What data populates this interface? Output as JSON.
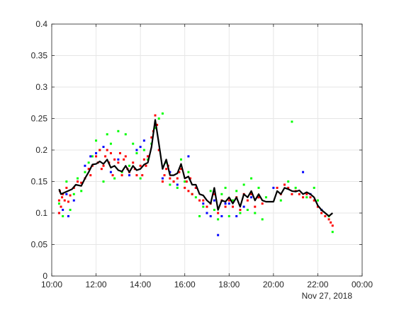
{
  "chart_data": {
    "type": "scatter",
    "title": "",
    "xlabel": "",
    "ylabel": "",
    "date_label": "Nov 27, 2018",
    "xlim_hours": [
      10,
      24
    ],
    "ylim": [
      0,
      0.4
    ],
    "grid": true,
    "legend": "none",
    "x_tick_labels": [
      "10:00",
      "12:00",
      "14:00",
      "16:00",
      "18:00",
      "20:00",
      "22:00",
      "00:00"
    ],
    "y_tick_labels": [
      "0",
      "0.05",
      "0.1",
      "0.15",
      "0.2",
      "0.25",
      "0.3",
      "0.35",
      "0.4"
    ],
    "colors": {
      "red": "#ff0000",
      "green": "#00ff00",
      "blue": "#0000ff",
      "line": "#000000",
      "grid": "#e6e6e6",
      "axis": "#262626"
    },
    "line_series": {
      "name": "",
      "points": [
        [
          "10:20",
          0.138
        ],
        [
          "10:25",
          0.13
        ],
        [
          "10:40",
          0.134
        ],
        [
          "10:55",
          0.138
        ],
        [
          "11:05",
          0.145
        ],
        [
          "11:20",
          0.143
        ],
        [
          "11:30",
          0.155
        ],
        [
          "11:40",
          0.165
        ],
        [
          "11:50",
          0.177
        ],
        [
          "12:00",
          0.178
        ],
        [
          "12:10",
          0.182
        ],
        [
          "12:20",
          0.178
        ],
        [
          "12:30",
          0.185
        ],
        [
          "12:40",
          0.172
        ],
        [
          "12:50",
          0.175
        ],
        [
          "13:00",
          0.168
        ],
        [
          "13:10",
          0.166
        ],
        [
          "13:20",
          0.175
        ],
        [
          "13:30",
          0.165
        ],
        [
          "13:40",
          0.175
        ],
        [
          "13:50",
          0.168
        ],
        [
          "14:00",
          0.17
        ],
        [
          "14:10",
          0.177
        ],
        [
          "14:20",
          0.18
        ],
        [
          "14:30",
          0.205
        ],
        [
          "14:40",
          0.248
        ],
        [
          "14:50",
          0.21
        ],
        [
          "15:00",
          0.17
        ],
        [
          "15:10",
          0.185
        ],
        [
          "15:20",
          0.16
        ],
        [
          "15:30",
          0.16
        ],
        [
          "15:40",
          0.163
        ],
        [
          "15:50",
          0.178
        ],
        [
          "16:00",
          0.155
        ],
        [
          "16:10",
          0.158
        ],
        [
          "16:20",
          0.145
        ],
        [
          "16:30",
          0.145
        ],
        [
          "16:40",
          0.13
        ],
        [
          "16:50",
          0.128
        ],
        [
          "17:00",
          0.12
        ],
        [
          "17:10",
          0.115
        ],
        [
          "17:20",
          0.14
        ],
        [
          "17:30",
          0.105
        ],
        [
          "17:40",
          0.12
        ],
        [
          "17:50",
          0.118
        ],
        [
          "18:00",
          0.125
        ],
        [
          "18:10",
          0.115
        ],
        [
          "18:20",
          0.125
        ],
        [
          "18:30",
          0.11
        ],
        [
          "18:40",
          0.13
        ],
        [
          "18:50",
          0.125
        ],
        [
          "19:00",
          0.135
        ],
        [
          "19:10",
          0.12
        ],
        [
          "19:20",
          0.13
        ],
        [
          "19:30",
          0.12
        ],
        [
          "19:40",
          0.118
        ],
        [
          "20:00",
          0.118
        ],
        [
          "20:10",
          0.135
        ],
        [
          "20:20",
          0.13
        ],
        [
          "20:30",
          0.14
        ],
        [
          "20:40",
          0.138
        ],
        [
          "20:50",
          0.135
        ],
        [
          "21:00",
          0.134
        ],
        [
          "21:10",
          0.136
        ],
        [
          "21:20",
          0.13
        ],
        [
          "21:30",
          0.133
        ],
        [
          "21:40",
          0.13
        ],
        [
          "21:50",
          0.125
        ],
        [
          "22:00",
          0.112
        ],
        [
          "22:10",
          0.105
        ],
        [
          "22:20",
          0.1
        ],
        [
          "22:30",
          0.095
        ],
        [
          "22:40",
          0.1
        ]
      ]
    },
    "scatter_series": [
      {
        "name": "",
        "color": "red",
        "points": [
          [
            "10:20",
            0.1
          ],
          [
            "10:20",
            0.12
          ],
          [
            "10:22",
            0.135
          ],
          [
            "10:25",
            0.11
          ],
          [
            "10:28",
            0.125
          ],
          [
            "10:30",
            0.13
          ],
          [
            "10:35",
            0.12
          ],
          [
            "10:40",
            0.14
          ],
          [
            "10:45",
            0.118
          ],
          [
            "10:50",
            0.128
          ],
          [
            "11:00",
            0.14
          ],
          [
            "11:10",
            0.15
          ],
          [
            "11:20",
            0.148
          ],
          [
            "11:30",
            0.155
          ],
          [
            "11:40",
            0.17
          ],
          [
            "11:45",
            0.16
          ],
          [
            "11:50",
            0.175
          ],
          [
            "12:00",
            0.19
          ],
          [
            "12:05",
            0.18
          ],
          [
            "12:10",
            0.2
          ],
          [
            "12:15",
            0.17
          ],
          [
            "12:20",
            0.175
          ],
          [
            "12:25",
            0.19
          ],
          [
            "12:30",
            0.2
          ],
          [
            "12:35",
            0.18
          ],
          [
            "12:40",
            0.195
          ],
          [
            "12:45",
            0.16
          ],
          [
            "12:50",
            0.185
          ],
          [
            "13:00",
            0.18
          ],
          [
            "13:05",
            0.195
          ],
          [
            "13:10",
            0.16
          ],
          [
            "13:15",
            0.185
          ],
          [
            "13:20",
            0.19
          ],
          [
            "13:25",
            0.17
          ],
          [
            "13:30",
            0.165
          ],
          [
            "13:40",
            0.18
          ],
          [
            "13:45",
            0.17
          ],
          [
            "13:50",
            0.16
          ],
          [
            "14:00",
            0.175
          ],
          [
            "14:05",
            0.16
          ],
          [
            "14:10",
            0.185
          ],
          [
            "14:15",
            0.175
          ],
          [
            "14:20",
            0.19
          ],
          [
            "14:30",
            0.22
          ],
          [
            "14:35",
            0.23
          ],
          [
            "14:40",
            0.255
          ],
          [
            "14:45",
            0.24
          ],
          [
            "14:50",
            0.2
          ],
          [
            "15:00",
            0.15
          ],
          [
            "15:05",
            0.16
          ],
          [
            "15:10",
            0.17
          ],
          [
            "15:15",
            0.175
          ],
          [
            "15:20",
            0.155
          ],
          [
            "15:30",
            0.15
          ],
          [
            "15:40",
            0.155
          ],
          [
            "15:45",
            0.165
          ],
          [
            "15:50",
            0.17
          ],
          [
            "16:00",
            0.14
          ],
          [
            "16:05",
            0.15
          ],
          [
            "16:10",
            0.135
          ],
          [
            "16:15",
            0.155
          ],
          [
            "16:20",
            0.13
          ],
          [
            "16:30",
            0.14
          ],
          [
            "16:40",
            0.12
          ],
          [
            "16:50",
            0.12
          ],
          [
            "17:00",
            0.11
          ],
          [
            "17:10",
            0.115
          ],
          [
            "17:20",
            0.13
          ],
          [
            "17:30",
            0.1
          ],
          [
            "17:40",
            0.12
          ],
          [
            "17:50",
            0.11
          ],
          [
            "18:00",
            0.12
          ],
          [
            "18:10",
            0.11
          ],
          [
            "18:20",
            0.125
          ],
          [
            "18:30",
            0.105
          ],
          [
            "18:40",
            0.13
          ],
          [
            "18:50",
            0.12
          ],
          [
            "19:00",
            0.13
          ],
          [
            "19:10",
            0.11
          ],
          [
            "19:20",
            0.125
          ],
          [
            "19:30",
            0.115
          ],
          [
            "20:10",
            0.14
          ],
          [
            "20:20",
            0.13
          ],
          [
            "20:30",
            0.145
          ],
          [
            "20:40",
            0.14
          ],
          [
            "20:50",
            0.13
          ],
          [
            "21:00",
            0.135
          ],
          [
            "21:10",
            0.13
          ],
          [
            "21:20",
            0.125
          ],
          [
            "21:30",
            0.13
          ],
          [
            "21:40",
            0.125
          ],
          [
            "21:50",
            0.12
          ],
          [
            "22:00",
            0.11
          ],
          [
            "22:10",
            0.1
          ],
          [
            "22:20",
            0.095
          ],
          [
            "22:30",
            0.09
          ],
          [
            "22:35",
            0.085
          ],
          [
            "22:40",
            0.08
          ]
        ]
      },
      {
        "name": "",
        "color": "green",
        "points": [
          [
            "10:20",
            0.115
          ],
          [
            "10:30",
            0.095
          ],
          [
            "10:40",
            0.15
          ],
          [
            "10:50",
            0.105
          ],
          [
            "11:00",
            0.13
          ],
          [
            "11:10",
            0.155
          ],
          [
            "11:20",
            0.135
          ],
          [
            "11:30",
            0.165
          ],
          [
            "11:40",
            0.18
          ],
          [
            "11:50",
            0.19
          ],
          [
            "12:00",
            0.215
          ],
          [
            "12:10",
            0.2
          ],
          [
            "12:20",
            0.15
          ],
          [
            "12:30",
            0.225
          ],
          [
            "12:40",
            0.21
          ],
          [
            "12:50",
            0.155
          ],
          [
            "13:00",
            0.23
          ],
          [
            "13:10",
            0.165
          ],
          [
            "13:20",
            0.225
          ],
          [
            "13:30",
            0.175
          ],
          [
            "13:40",
            0.21
          ],
          [
            "13:50",
            0.195
          ],
          [
            "14:00",
            0.155
          ],
          [
            "14:10",
            0.2
          ],
          [
            "14:20",
            0.185
          ],
          [
            "14:30",
            0.21
          ],
          [
            "14:40",
            0.235
          ],
          [
            "14:50",
            0.25
          ],
          [
            "15:00",
            0.258
          ],
          [
            "15:10",
            0.18
          ],
          [
            "15:20",
            0.145
          ],
          [
            "15:30",
            0.15
          ],
          [
            "15:40",
            0.14
          ],
          [
            "15:50",
            0.185
          ],
          [
            "16:00",
            0.15
          ],
          [
            "16:10",
            0.165
          ],
          [
            "16:20",
            0.13
          ],
          [
            "16:30",
            0.125
          ],
          [
            "16:40",
            0.095
          ],
          [
            "16:50",
            0.11
          ],
          [
            "17:00",
            0.1
          ],
          [
            "17:10",
            0.135
          ],
          [
            "17:20",
            0.105
          ],
          [
            "17:30",
            0.09
          ],
          [
            "17:40",
            0.13
          ],
          [
            "17:50",
            0.14
          ],
          [
            "18:00",
            0.095
          ],
          [
            "18:10",
            0.12
          ],
          [
            "18:20",
            0.135
          ],
          [
            "18:30",
            0.1
          ],
          [
            "18:40",
            0.145
          ],
          [
            "18:50",
            0.105
          ],
          [
            "19:00",
            0.155
          ],
          [
            "19:10",
            0.1
          ],
          [
            "19:20",
            0.14
          ],
          [
            "19:30",
            0.09
          ],
          [
            "19:40",
            0.125
          ],
          [
            "20:20",
            0.12
          ],
          [
            "20:40",
            0.15
          ],
          [
            "20:50",
            0.245
          ],
          [
            "21:00",
            0.14
          ],
          [
            "21:30",
            0.125
          ],
          [
            "21:50",
            0.14
          ],
          [
            "22:00",
            0.12
          ],
          [
            "22:10",
            0.105
          ],
          [
            "22:30",
            0.095
          ],
          [
            "22:40",
            0.07
          ]
        ]
      },
      {
        "name": "",
        "color": "blue",
        "points": [
          [
            "10:20",
            0.1
          ],
          [
            "10:30",
            0.105
          ],
          [
            "10:40",
            0.13
          ],
          [
            "10:45",
            0.095
          ],
          [
            "11:00",
            0.12
          ],
          [
            "11:30",
            0.175
          ],
          [
            "11:45",
            0.19
          ],
          [
            "12:00",
            0.195
          ],
          [
            "12:20",
            0.205
          ],
          [
            "12:40",
            0.165
          ],
          [
            "13:00",
            0.185
          ],
          [
            "13:30",
            0.16
          ],
          [
            "13:50",
            0.2
          ],
          [
            "14:00",
            0.205
          ],
          [
            "14:10",
            0.215
          ],
          [
            "14:20",
            0.19
          ],
          [
            "15:00",
            0.155
          ],
          [
            "15:20",
            0.165
          ],
          [
            "15:40",
            0.145
          ],
          [
            "16:10",
            0.19
          ],
          [
            "16:30",
            0.14
          ],
          [
            "16:50",
            0.115
          ],
          [
            "17:00",
            0.1
          ],
          [
            "17:10",
            0.095
          ],
          [
            "17:20",
            0.12
          ],
          [
            "17:30",
            0.065
          ],
          [
            "17:40",
            0.095
          ],
          [
            "17:50",
            0.115
          ],
          [
            "18:00",
            0.115
          ],
          [
            "18:20",
            0.095
          ],
          [
            "18:40",
            0.11
          ],
          [
            "19:00",
            0.125
          ],
          [
            "19:20",
            0.125
          ],
          [
            "20:00",
            0.14
          ],
          [
            "21:20",
            0.165
          ],
          [
            "21:40",
            0.13
          ],
          [
            "22:10",
            0.105
          ]
        ]
      }
    ]
  }
}
